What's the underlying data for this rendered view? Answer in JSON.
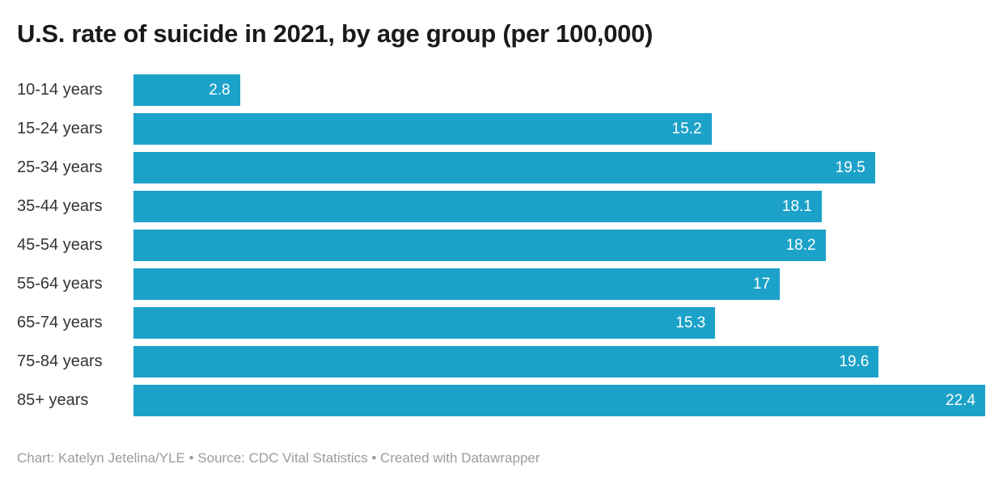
{
  "title": "U.S. rate of suicide in 2021, by age group (per 100,000)",
  "footer": "Chart: Katelyn Jetelina/YLE • Source: CDC Vital Statistics • Created with Datawrapper",
  "colors": {
    "background": "#ffffff",
    "bar": "#1ca2c9",
    "title": "#1a1a1a",
    "category_label": "#333333",
    "value_label": "#ffffff",
    "footer": "#9b9b9b"
  },
  "chart_data": {
    "type": "bar",
    "orientation": "horizontal",
    "title": "U.S. rate of suicide in 2021, by age group (per 100,000)",
    "xlabel": "",
    "ylabel": "",
    "categories": [
      "10-14 years",
      "15-24 years",
      "25-34 years",
      "35-44 years",
      "45-54 years",
      "55-64 years",
      "65-74 years",
      "75-84 years",
      "85+ years"
    ],
    "values": [
      2.8,
      15.2,
      19.5,
      18.1,
      18.2,
      17,
      15.3,
      19.6,
      22.4
    ],
    "value_labels": [
      "2.8",
      "15.2",
      "19.5",
      "18.1",
      "18.2",
      "17",
      "15.3",
      "19.6",
      "22.4"
    ],
    "xlim": [
      0,
      22.4
    ],
    "grid": false,
    "legend": false,
    "value_labels_position": "inside-end"
  }
}
